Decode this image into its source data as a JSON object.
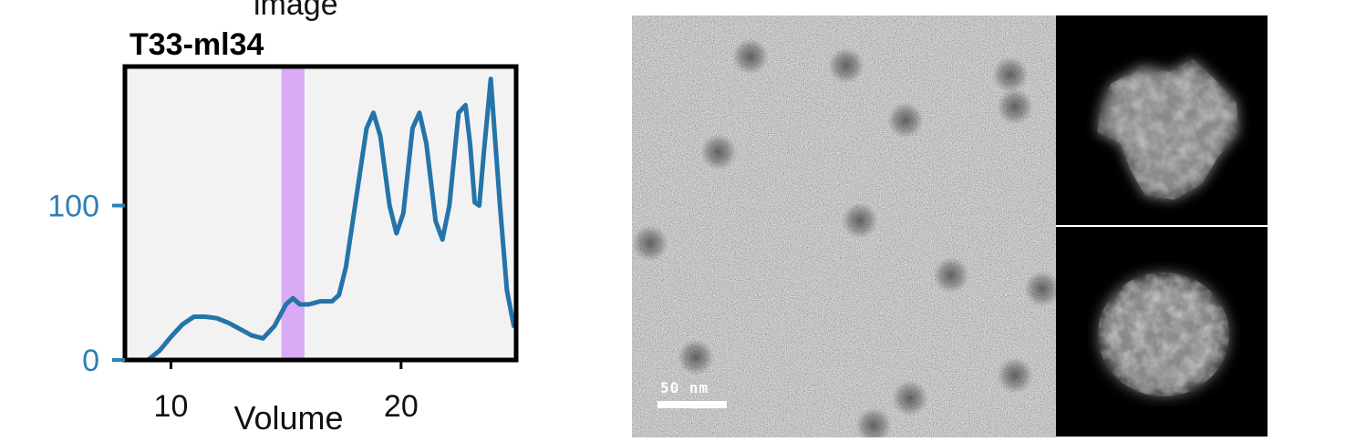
{
  "partial_heading": "image",
  "chart_data": {
    "type": "line",
    "title": "T33-ml34",
    "xlabel": "Volume",
    "ylabel": "",
    "x_ticks": [
      "10",
      "20"
    ],
    "y_ticks": [
      "0",
      "100"
    ],
    "xlim": [
      8,
      25
    ],
    "ylim": [
      0,
      190
    ],
    "grid": false,
    "background": "#f2f2f2",
    "line_color": "#2474a8",
    "highlight_color": "#d8abf4",
    "highlight_range": [
      14.8,
      15.8
    ],
    "series": [
      {
        "x": [
          9.0,
          9.5,
          10.0,
          10.5,
          11.0,
          11.5,
          12.0,
          12.5,
          13.0,
          13.5,
          14.0,
          14.5,
          15.0,
          15.3,
          15.6,
          16.0,
          16.5,
          17.0,
          17.3,
          17.6,
          18.0,
          18.5,
          18.8,
          19.1,
          19.5,
          19.8,
          20.1,
          20.5,
          20.8,
          21.1,
          21.5,
          21.8,
          22.1,
          22.5,
          22.8,
          23.0,
          23.2,
          23.4,
          23.6,
          23.9,
          24.1,
          24.3,
          24.6,
          24.9
        ],
        "y": [
          0,
          6,
          15,
          23,
          28,
          28,
          27,
          24,
          20,
          16,
          14,
          22,
          36,
          40,
          36,
          36,
          38,
          38,
          42,
          60,
          100,
          150,
          160,
          145,
          100,
          82,
          95,
          150,
          160,
          140,
          90,
          78,
          100,
          160,
          165,
          140,
          102,
          100,
          135,
          182,
          140,
          100,
          45,
          22
        ]
      }
    ]
  },
  "micrograph": {
    "scale_bar_label": "50 nm"
  }
}
